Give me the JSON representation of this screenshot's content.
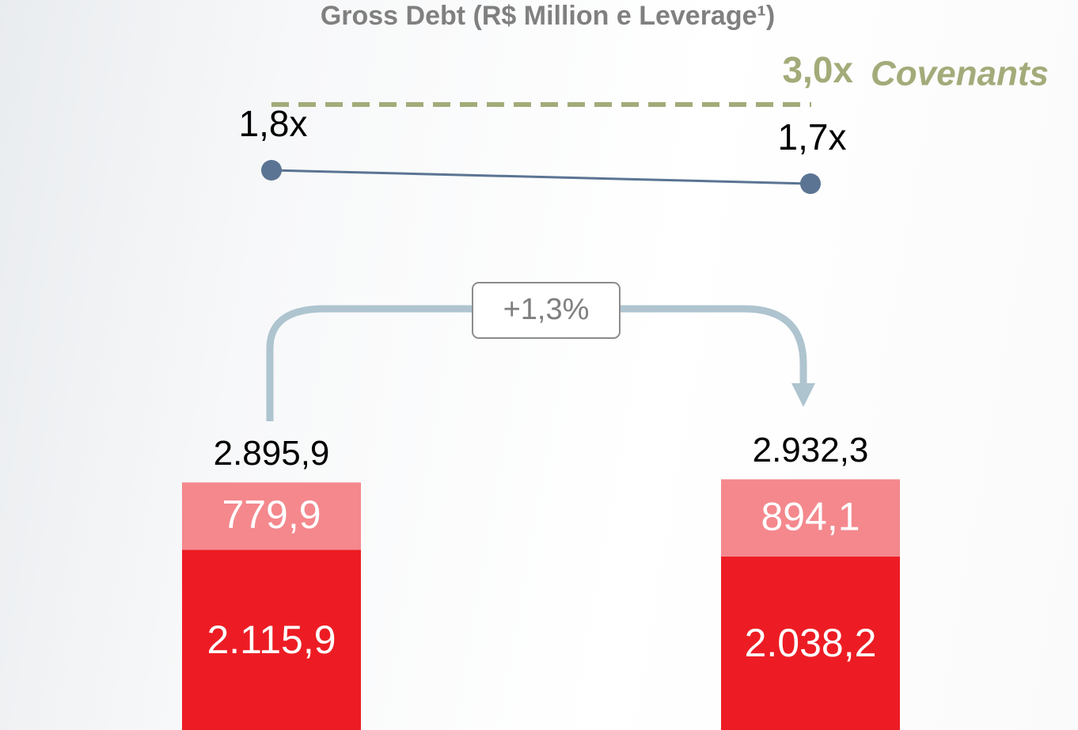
{
  "chart_data": {
    "type": "bar",
    "title": "Gross Debt (R$ Million e Leverage¹)",
    "categories": [
      null,
      null
    ],
    "series": [
      {
        "color": "#ed1c24",
        "values": [
          2115.9,
          2038.2
        ],
        "value_labels": [
          "2.115,9",
          "2.038,2"
        ]
      },
      {
        "color": "#f4888d",
        "values": [
          779.9,
          894.1
        ],
        "value_labels": [
          "779,9",
          "894,1"
        ]
      }
    ],
    "totals": [
      2895.9,
      2932.3
    ],
    "total_labels": [
      "2.895,9",
      "2.932,3"
    ],
    "leverage": {
      "color": "#5b7493",
      "values": [
        1.8,
        1.7
      ],
      "value_labels": [
        "1,8x",
        "1,7x"
      ]
    },
    "covenant": {
      "value": 3.0,
      "label": "3,0x",
      "text": "Covenants",
      "color": "#a3ab7a"
    },
    "change_label": "+1,3%"
  }
}
